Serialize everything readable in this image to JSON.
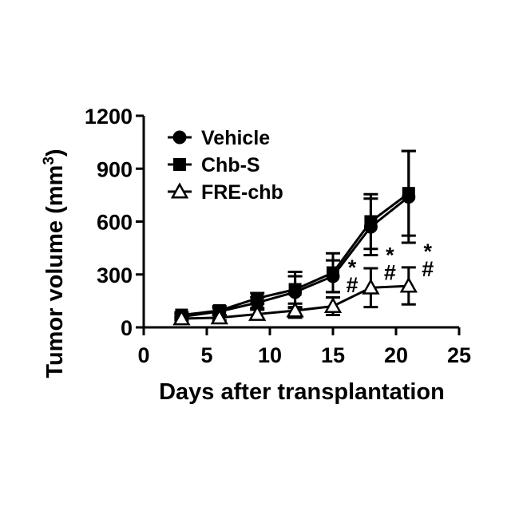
{
  "chart_data": {
    "type": "line",
    "xlabel": "Days after transplantation",
    "ylabel_main": "Tumor volume (mm",
    "ylabel_sup": "3",
    "ylabel_close": ")",
    "xlim": [
      0,
      25
    ],
    "ylim": [
      0,
      1200
    ],
    "xticks": [
      0,
      5,
      10,
      15,
      20,
      25
    ],
    "yticks": [
      0,
      300,
      600,
      900,
      1200
    ],
    "xtick_labels": [
      "0",
      "5",
      "10",
      "15",
      "20",
      "25"
    ],
    "ytick_labels": [
      "0",
      "300",
      "600",
      "900",
      "1200"
    ],
    "grid": false,
    "legend_position": "top-left",
    "x": [
      3,
      6,
      9,
      12,
      15,
      18,
      21
    ],
    "series": [
      {
        "name": "Vehicle",
        "marker": "circle-filled",
        "values": [
          60,
          90,
          140,
          200,
          290,
          570,
          740
        ],
        "errors": [
          15,
          20,
          30,
          90,
          90,
          160,
          260
        ]
      },
      {
        "name": "Chb-S",
        "marker": "square-filled",
        "values": [
          70,
          95,
          165,
          215,
          310,
          600,
          760
        ],
        "errors": [
          15,
          25,
          30,
          100,
          110,
          155,
          240
        ]
      },
      {
        "name": "FRE-chb",
        "marker": "triangle-open",
        "values": [
          50,
          55,
          75,
          95,
          120,
          225,
          235
        ],
        "errors": [
          10,
          15,
          25,
          40,
          50,
          110,
          105
        ]
      }
    ],
    "annotations": [
      {
        "x": 15,
        "y": 300,
        "text": "*",
        "color": "#000000"
      },
      {
        "x": 15,
        "y": 300,
        "text": "#",
        "color": "#000000"
      },
      {
        "x": 18,
        "y": 370,
        "text": "*",
        "color": "#000000"
      },
      {
        "x": 18,
        "y": 370,
        "text": "#",
        "color": "#000000"
      },
      {
        "x": 21,
        "y": 390,
        "text": "*",
        "color": "#000000"
      },
      {
        "x": 21,
        "y": 390,
        "text": "#",
        "color": "#000000"
      }
    ]
  }
}
